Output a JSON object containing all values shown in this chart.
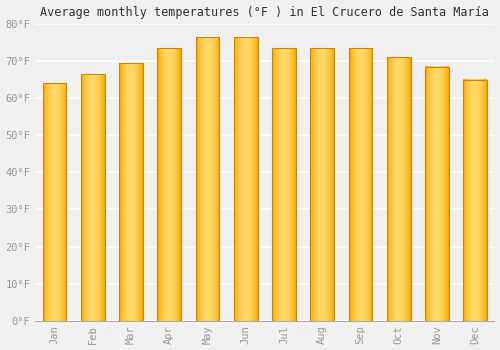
{
  "title": "Average monthly temperatures (°F ) in El Crucero de Santa María",
  "months": [
    "Jan",
    "Feb",
    "Mar",
    "Apr",
    "May",
    "Jun",
    "Jul",
    "Aug",
    "Sep",
    "Oct",
    "Nov",
    "Dec"
  ],
  "values": [
    64.0,
    66.5,
    69.5,
    73.5,
    76.5,
    76.5,
    73.5,
    73.5,
    73.5,
    71.0,
    68.5,
    65.0
  ],
  "bar_color_center": "#FFD966",
  "bar_color_edge": "#F5A800",
  "bar_color_dark_edge": "#CC8800",
  "ylim": [
    0,
    80
  ],
  "yticks": [
    0,
    10,
    20,
    30,
    40,
    50,
    60,
    70,
    80
  ],
  "ytick_labels": [
    "0°F",
    "10°F",
    "20°F",
    "30°F",
    "40°F",
    "50°F",
    "60°F",
    "70°F",
    "80°F"
  ],
  "background_color": "#f0f0f0",
  "plot_bg_color": "#f0f0f0",
  "grid_color": "#ffffff",
  "title_fontsize": 8.5,
  "tick_fontsize": 7.5,
  "font_family": "monospace",
  "tick_color": "#999999"
}
